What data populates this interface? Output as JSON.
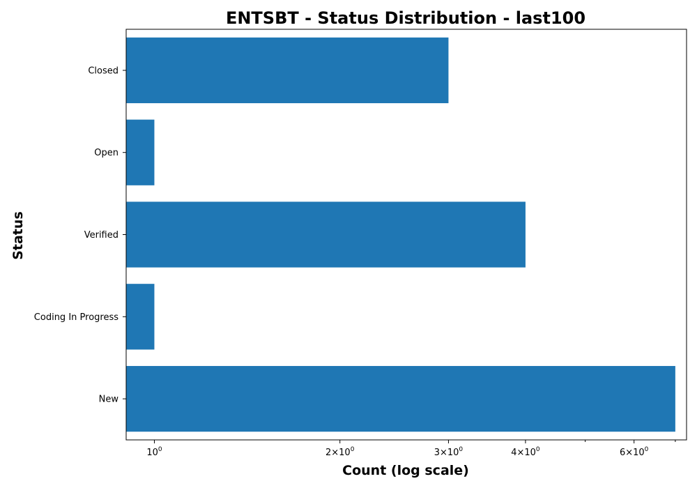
{
  "chart_data": {
    "type": "bar",
    "orientation": "horizontal",
    "title": "ENTSBT - Status Distribution - last100",
    "xlabel": "Count (log scale)",
    "ylabel": "Status",
    "x_scale": "log",
    "xlim": [
      0.9,
      7.3
    ],
    "grid": false,
    "categories": [
      "Closed",
      "Open",
      "Verified",
      "Coding In Progress",
      "New"
    ],
    "values": [
      3,
      1,
      4,
      1,
      7
    ],
    "bar_color": "#1f77b4",
    "x_ticks": [
      {
        "value": 1,
        "base": "10",
        "exp": "0"
      },
      {
        "value": 2,
        "base": "2×10",
        "exp": "0"
      },
      {
        "value": 3,
        "base": "3×10",
        "exp": "0"
      },
      {
        "value": 4,
        "base": "4×10",
        "exp": "0"
      },
      {
        "value": 6,
        "base": "6×10",
        "exp": "0"
      }
    ],
    "x_minor_ticks": [
      5,
      7
    ]
  }
}
